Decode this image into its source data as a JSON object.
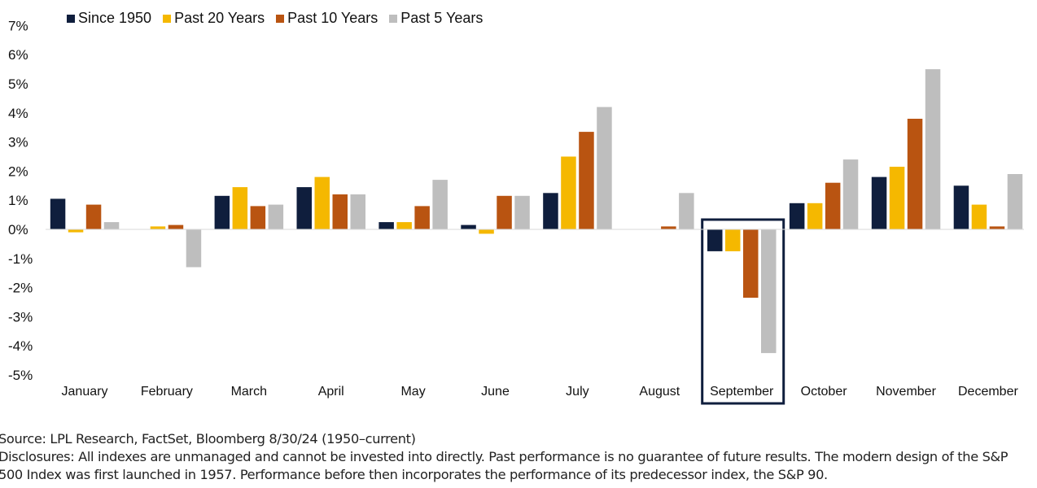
{
  "colors": {
    "since_1950": "#0f1e3d",
    "past_20": "#f5b800",
    "past_10": "#b95411",
    "past_5": "#bebebe",
    "highlight_box": "#0f1e3d"
  },
  "chart_data": {
    "type": "bar",
    "categories": [
      "January",
      "February",
      "March",
      "April",
      "May",
      "June",
      "July",
      "August",
      "September",
      "October",
      "November",
      "December"
    ],
    "series": [
      {
        "name": "Since 1950",
        "values": [
          1.05,
          0.0,
          1.15,
          1.45,
          0.25,
          0.15,
          1.25,
          0.0,
          -0.75,
          0.9,
          1.8,
          1.5
        ]
      },
      {
        "name": "Past 20 Years",
        "values": [
          -0.1,
          0.1,
          1.45,
          1.8,
          0.25,
          -0.15,
          2.5,
          0.0,
          -0.75,
          0.9,
          2.15,
          0.85
        ]
      },
      {
        "name": "Past 10 Years",
        "values": [
          0.85,
          0.15,
          0.8,
          1.2,
          0.8,
          1.15,
          3.35,
          0.1,
          -2.35,
          1.6,
          3.8,
          0.1
        ]
      },
      {
        "name": "Past 5 Years",
        "values": [
          0.25,
          -1.3,
          0.85,
          1.2,
          1.7,
          1.15,
          4.2,
          1.25,
          -4.25,
          2.4,
          5.5,
          1.9
        ]
      }
    ],
    "ylim": [
      -5,
      7
    ],
    "yticks": [
      "-5%",
      "-4%",
      "-3%",
      "-2%",
      "-1%",
      "0%",
      "1%",
      "2%",
      "3%",
      "4%",
      "5%",
      "6%",
      "7%"
    ],
    "ytick_values": [
      -5,
      -4,
      -3,
      -2,
      -1,
      0,
      1,
      2,
      3,
      4,
      5,
      6,
      7
    ],
    "highlight_category": "September",
    "legend_position": "top-left",
    "grid": false
  },
  "footer": {
    "source": "Source: LPL Research, FactSet, Bloomberg 8/30/24 (1950–current)",
    "disclosure_line1": "Disclosures: All indexes are unmanaged and cannot be invested into directly. Past performance is no guarantee of future results. The modern design of the S&P",
    "disclosure_line2": "500 Index was first launched in 1957. Performance before then incorporates the performance of its predecessor index, the S&P 90."
  }
}
